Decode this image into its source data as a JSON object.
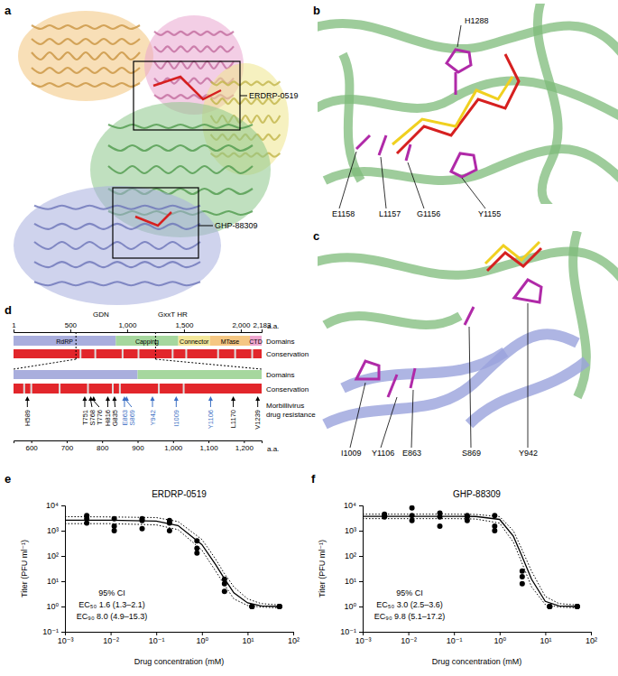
{
  "panel_labels": [
    "a",
    "b",
    "c",
    "d",
    "e",
    "f"
  ],
  "structure": {
    "a": {
      "labels": [
        "ERDRP-0519",
        "GHP-88309"
      ]
    },
    "b": {
      "labels": [
        "H1288",
        "E1158",
        "L1157",
        "G1156",
        "Y1155"
      ]
    },
    "c": {
      "labels": [
        "I1009",
        "Y1106",
        "E863",
        "S869",
        "Y942"
      ]
    }
  },
  "domain_map": {
    "xlim": [
      1,
      2183
    ],
    "xticks": [
      1,
      500,
      {
        "value": 1000,
        "label": "1,000"
      },
      {
        "value": 1500,
        "label": "1,500"
      },
      {
        "value": 2000,
        "label": "2,000"
      },
      {
        "value": 2183,
        "label": "2,183"
      }
    ],
    "unit": "a.a.",
    "motifs": [
      {
        "label": "GDN",
        "position": 770
      },
      {
        "label": "GxxT HR",
        "position": 1400
      }
    ],
    "row_labels": [
      "Domains",
      "Conservation"
    ],
    "domains": [
      {
        "name": "RdRP",
        "start": 1,
        "end": 900,
        "color": "#a9aedd"
      },
      {
        "name": "Capping",
        "start": 900,
        "end": 1450,
        "color": "#a6d79e"
      },
      {
        "name": "Connector",
        "start": 1450,
        "end": 1730,
        "color": "#f3e79a"
      },
      {
        "name": "MTase",
        "start": 1730,
        "end": 2080,
        "color": "#f5c783"
      },
      {
        "name": "CTD",
        "start": 2080,
        "end": 2183,
        "color": "#eea6cf"
      }
    ],
    "conservation_color": "#e2262b",
    "low_conservation": [
      590,
      720,
      960,
      1100,
      1400,
      1520,
      1800,
      1950,
      2100
    ],
    "zoom": {
      "xlim": [
        550,
        1250
      ],
      "xticks": [
        600,
        700,
        800,
        900,
        {
          "value": 1000,
          "label": "1,000"
        },
        {
          "value": 1100,
          "label": "1,100"
        },
        {
          "value": 1200,
          "label": "1,200"
        }
      ],
      "low_conservation": [
        580,
        600,
        680,
        760,
        830,
        850,
        960,
        1030
      ]
    },
    "resistance_label": [
      "Morbillivirus",
      "drug resistance"
    ],
    "resistance_sites": [
      {
        "label": "H589",
        "position": 589,
        "color": "#000000"
      },
      {
        "label": "T751",
        "position": 751,
        "color": "#000000"
      },
      {
        "label": "S768",
        "position": 768,
        "color": "#000000"
      },
      {
        "label": "T776",
        "position": 776,
        "color": "#000000"
      },
      {
        "label": "H816",
        "position": 816,
        "color": "#000000"
      },
      {
        "label": "G835",
        "position": 835,
        "color": "#000000"
      },
      {
        "label": "E863",
        "position": 863,
        "color": "#3a6fc4"
      },
      {
        "label": "S869",
        "position": 869,
        "color": "#3a6fc4"
      },
      {
        "label": "Y942",
        "position": 942,
        "color": "#3a6fc4"
      },
      {
        "label": "I1009",
        "position": 1009,
        "color": "#3a6fc4"
      },
      {
        "label": "Y1106",
        "position": 1106,
        "color": "#3a6fc4"
      },
      {
        "label": "L1170",
        "position": 1170,
        "color": "#000000"
      },
      {
        "label": "V1239",
        "position": 1239,
        "color": "#000000"
      }
    ]
  },
  "chart_data": [
    {
      "type": "scatter",
      "title": "ERDRP-0519",
      "x_label": "Drug concentration (mM)",
      "y_label": "Titer (PFU ml⁻¹)",
      "log": true,
      "xlim": [
        0.001,
        100
      ],
      "xticks": [
        {
          "value": 0.001,
          "label": "10⁻³"
        },
        {
          "value": 0.01,
          "label": "10⁻²"
        },
        {
          "value": 0.1,
          "label": "10⁻¹"
        },
        {
          "value": 1,
          "label": "10⁰"
        },
        {
          "value": 10,
          "label": "10¹"
        },
        {
          "value": 100,
          "label": "10²"
        }
      ],
      "ylim": [
        0.1,
        10000
      ],
      "yticks": [
        {
          "value": 0.1,
          "label": "10⁻¹"
        },
        {
          "value": 1,
          "label": "10⁰"
        },
        {
          "value": 10,
          "label": "10¹"
        },
        {
          "value": 100,
          "label": "10²"
        },
        {
          "value": 1000,
          "label": "10³"
        },
        {
          "value": 10000,
          "label": "10⁴"
        }
      ],
      "annotations": [
        "95% CI",
        "EC₅₀ 1.6 (1.3–2.1)",
        "EC₉₀ 8.0 (4.9–15.3)"
      ],
      "series": [
        {
          "type": "scatter",
          "marker": "circle",
          "color": "#000000",
          "x": [
            0.003,
            0.003,
            0.003,
            0.012,
            0.012,
            0.012,
            0.049,
            0.049,
            0.049,
            0.195,
            0.195,
            0.195,
            0.78,
            0.78,
            0.78,
            3.125,
            3.125,
            3.125,
            12.5,
            12.5,
            12.5,
            50,
            50,
            50
          ],
          "values": [
            4000,
            3000,
            2000,
            3000,
            1500,
            1000,
            3000,
            2500,
            1200,
            2500,
            2000,
            1000,
            400,
            200,
            130,
            12,
            8,
            4,
            1,
            1,
            1,
            1,
            1,
            1
          ]
        },
        {
          "type": "line",
          "line_style": "solid",
          "color": "#000000",
          "x": [
            0.001,
            0.01,
            0.1,
            0.3,
            1,
            2,
            3,
            5,
            10,
            20,
            50
          ],
          "values": [
            2600,
            2600,
            2400,
            1600,
            280,
            45,
            14,
            3.5,
            1.4,
            1.05,
            1
          ]
        },
        {
          "type": "line",
          "line_style": "dotted",
          "color": "#000000",
          "x": [
            0.001,
            0.01,
            0.1,
            0.3,
            1,
            2,
            3,
            5,
            10,
            20,
            50
          ],
          "values": [
            3600,
            3500,
            3300,
            2300,
            450,
            75,
            22,
            6,
            2,
            1.3,
            1.15
          ]
        },
        {
          "type": "line",
          "line_style": "dotted",
          "color": "#000000",
          "x": [
            0.001,
            0.01,
            0.1,
            0.3,
            1,
            2,
            3,
            5,
            10,
            20,
            50
          ],
          "values": [
            1900,
            1900,
            1700,
            1100,
            170,
            25,
            8,
            2,
            1.1,
            0.95,
            0.88
          ]
        }
      ]
    },
    {
      "type": "scatter",
      "title": "GHP-88309",
      "x_label": "Drug concentration (mM)",
      "y_label": "Titer (PFU ml⁻¹)",
      "log": true,
      "xlim": [
        0.001,
        100
      ],
      "xticks": [
        {
          "value": 0.001,
          "label": "10⁻³"
        },
        {
          "value": 0.01,
          "label": "10⁻²"
        },
        {
          "value": 0.1,
          "label": "10⁻¹"
        },
        {
          "value": 1,
          "label": "10⁰"
        },
        {
          "value": 10,
          "label": "10¹"
        },
        {
          "value": 100,
          "label": "10²"
        }
      ],
      "ylim": [
        0.1,
        10000
      ],
      "yticks": [
        {
          "value": 0.1,
          "label": "10⁻¹"
        },
        {
          "value": 1,
          "label": "10⁰"
        },
        {
          "value": 10,
          "label": "10¹"
        },
        {
          "value": 100,
          "label": "10²"
        },
        {
          "value": 1000,
          "label": "10³"
        },
        {
          "value": 10000,
          "label": "10⁴"
        }
      ],
      "annotations": [
        "95% CI",
        "EC₅₀ 3.0 (2.5–3.6)",
        "EC₉₀ 9.8 (5.1–17.2)"
      ],
      "series": [
        {
          "type": "scatter",
          "marker": "circle",
          "color": "#000000",
          "x": [
            0.003,
            0.003,
            0.003,
            0.012,
            0.012,
            0.012,
            0.049,
            0.049,
            0.049,
            0.195,
            0.195,
            0.195,
            0.78,
            0.78,
            0.78,
            3.125,
            3.125,
            3.125,
            12.5,
            12.5,
            12.5,
            50,
            50,
            50
          ],
          "values": [
            4500,
            4000,
            3500,
            8000,
            4000,
            2500,
            5000,
            3500,
            1500,
            4000,
            3500,
            2500,
            4000,
            1500,
            1000,
            25,
            15,
            8,
            1,
            1,
            1,
            1,
            1,
            1
          ]
        },
        {
          "type": "line",
          "line_style": "solid",
          "color": "#000000",
          "x": [
            0.001,
            0.01,
            0.1,
            0.3,
            1,
            2,
            3,
            5,
            10,
            20,
            50
          ],
          "values": [
            3700,
            3700,
            3700,
            3650,
            2800,
            600,
            110,
            12,
            1.6,
            1.05,
            1
          ]
        },
        {
          "type": "line",
          "line_style": "dotted",
          "color": "#000000",
          "x": [
            0.001,
            0.01,
            0.1,
            0.3,
            1,
            2,
            3,
            5,
            10,
            20,
            50
          ],
          "values": [
            4500,
            4500,
            4500,
            4400,
            3600,
            1000,
            200,
            25,
            2.5,
            1.3,
            1.15
          ]
        },
        {
          "type": "line",
          "line_style": "dotted",
          "color": "#000000",
          "x": [
            0.001,
            0.01,
            0.1,
            0.3,
            1,
            2,
            3,
            5,
            10,
            20,
            50
          ],
          "values": [
            3000,
            3000,
            3000,
            2900,
            2000,
            350,
            60,
            6,
            1.2,
            0.95,
            0.88
          ]
        }
      ]
    }
  ]
}
